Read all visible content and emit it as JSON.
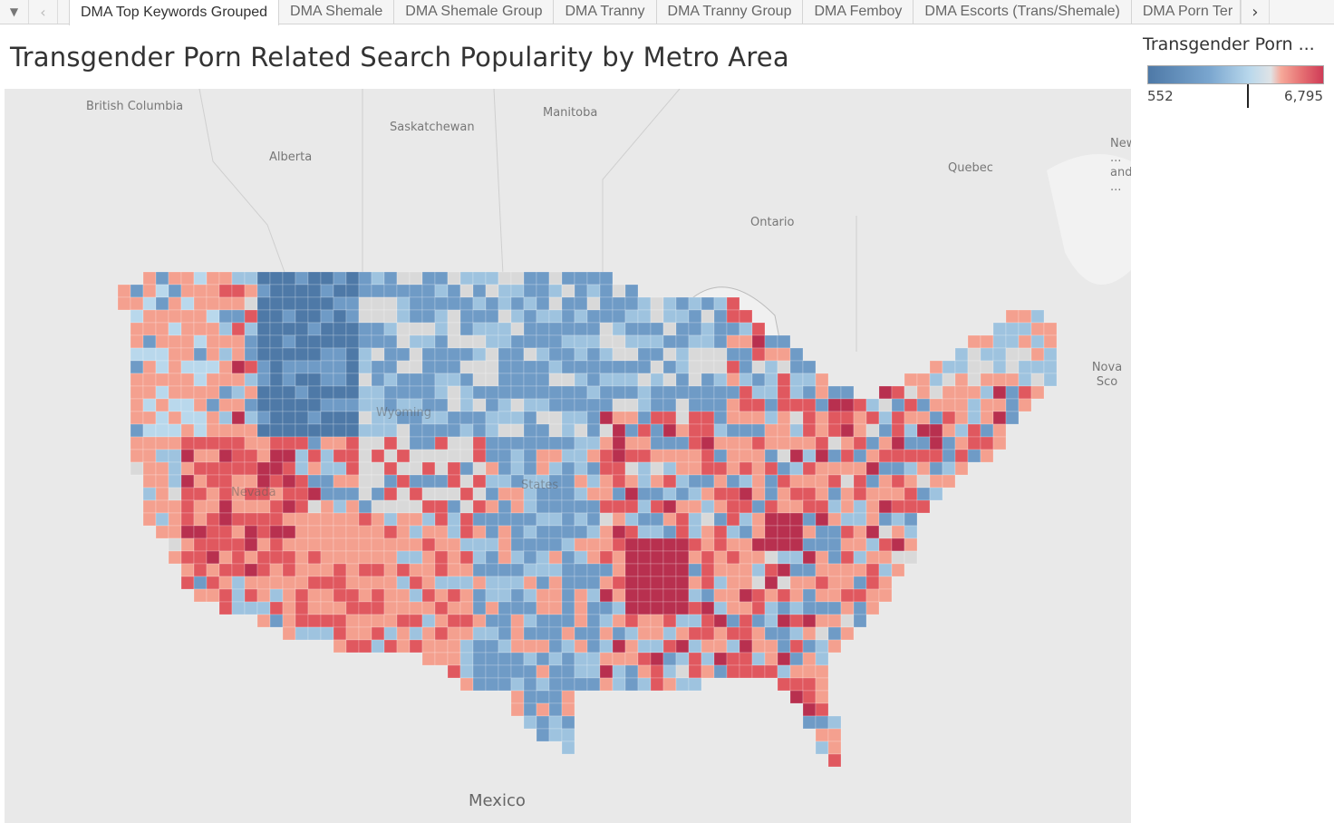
{
  "tabs": {
    "prev_icon": "chevron-left",
    "menu_icon": "caret-down",
    "next_icon": "chevron-right",
    "items": [
      {
        "label": "DMA Top Keywords Grouped",
        "active": true
      },
      {
        "label": "DMA Shemale"
      },
      {
        "label": "DMA Shemale Group"
      },
      {
        "label": "DMA Tranny"
      },
      {
        "label": "DMA Tranny Group"
      },
      {
        "label": "DMA Femboy"
      },
      {
        "label": "DMA Escorts (Trans/Shemale)"
      },
      {
        "label": "DMA Porn Ter"
      }
    ]
  },
  "title": "Transgender Porn Related Search Popularity by Metro Area",
  "legend": {
    "title": "Transgender Porn ...",
    "min": "552",
    "max": "6,795",
    "colors": [
      "#4e79a7",
      "#b9d8ec",
      "#dfe3e6",
      "#f6a899",
      "#cf3c57"
    ]
  },
  "map": {
    "labels": [
      "British Columbia",
      "Alberta",
      "Saskatchewan",
      "Manitoba",
      "Ontario",
      "Quebec",
      "New ... and ...",
      "Nova Sco",
      "Mexico",
      "Nevada",
      "Wyoming",
      "States"
    ]
  }
}
